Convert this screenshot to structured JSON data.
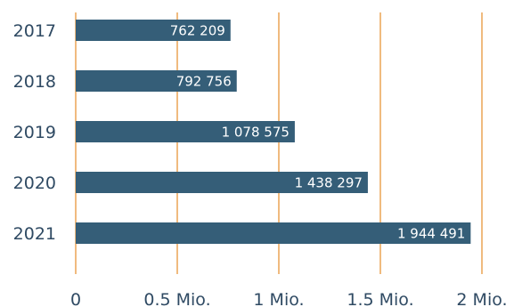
{
  "chart_data": {
    "type": "bar",
    "orientation": "horizontal",
    "categories": [
      "2017",
      "2018",
      "2019",
      "2020",
      "2021"
    ],
    "values": [
      762209,
      792756,
      1078575,
      1438297,
      1944491
    ],
    "value_labels": [
      "762 209",
      "792 756",
      "1 078 575",
      "1 438 297",
      "1 944 491"
    ],
    "xlim": [
      0,
      2000000
    ],
    "x_ticks": [
      0,
      500000,
      1000000,
      1500000,
      2000000
    ],
    "x_tick_labels": [
      "0",
      "0.5 Mio.",
      "1 Mio.",
      "1.5 Mio.",
      "2 Mio."
    ],
    "grid": "vertical",
    "legend": "none",
    "colors": {
      "bar": "#355e78",
      "gridline": "#e8963a",
      "text": "#2f4a63",
      "bar_label": "#ffffff"
    }
  }
}
